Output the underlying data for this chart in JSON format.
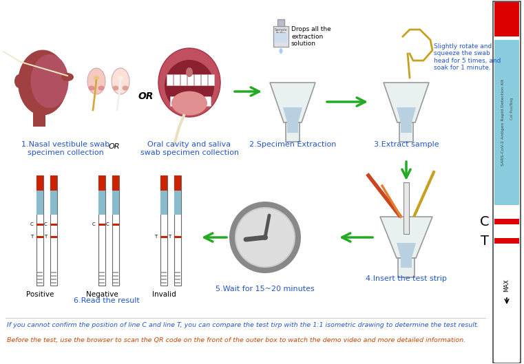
{
  "bg_color": "#ffffff",
  "footnote1": "If you cannot confirm the position of line C and line T, you can compare the test tirp with the 1:1 isometric drawing to determine the test result.",
  "footnote2": "Before the test, use the browser to scan the QR code on the front of the outer box to watch the demo video and more detailed information.",
  "footnote1_color": "#2255cc",
  "footnote2_color": "#cc4400",
  "step1_label": "1.Nasal vestibule swab\nspecimen collection",
  "or_label": "OR",
  "oral_label": "Oral cavity and saliva\nswab specimen collection",
  "step2_label": "2.Specimen Extraction",
  "step3_label": "3.Extract sample",
  "step4_label": "4.Insert the test strip",
  "step5_label": "5.Wait for 15~20 minutes",
  "step6_label": "6.Read the result",
  "positive_label": "Positive",
  "negative_label": "Negative",
  "invalid_label": "Invalid",
  "drops_label": "Drops all the\nextraction\nsolution",
  "rotate_label": "Slightly rotate and\nsqueeze the swab\nhead for 5 times, and\nsoak for 1 minute.",
  "c_label": "C",
  "t_label": "T",
  "max_label": "MAX",
  "right_panel_red": "#dd0000",
  "right_panel_cyan": "#88ccdd",
  "right_panel_border": "#444444",
  "arrow_green": "#22aa22",
  "arrow_dark_green": "#227722",
  "strip_red": "#cc2200",
  "strip_cyan": "#88bbcc",
  "strip_border": "#666666",
  "clock_outer": "#999999",
  "clock_inner": "#bbbbbb",
  "label_color": "#2255cc",
  "label_fontsize": 8.0,
  "small_fontsize": 7.5,
  "head_dark": "#a04040",
  "head_light": "#f0b8b8",
  "mouth_dark": "#a04060",
  "mouth_tongue": "#cc8888"
}
